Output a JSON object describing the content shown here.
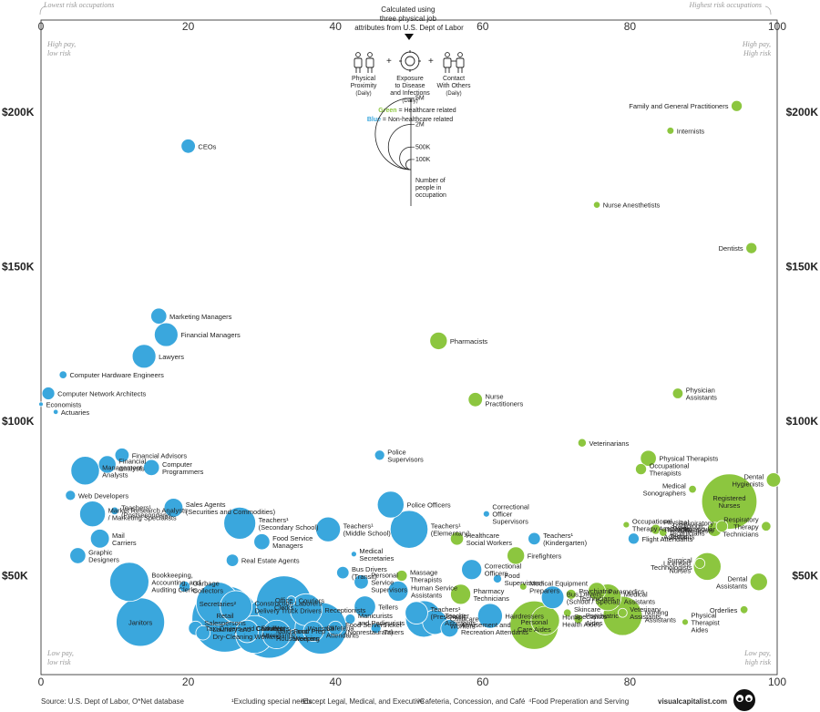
{
  "chart_data": {
    "type": "scatter",
    "subtitle": "Calculated using three physical job attributes from U.S. Dept of Labor",
    "x_top_left_note": "Lowest risk occupations",
    "x_top_right_note": "Highest risk occupations",
    "xlim": [
      0,
      100
    ],
    "xticks": [
      "0",
      "20",
      "40",
      "60",
      "80",
      "100"
    ],
    "ylim": [
      20000,
      215000
    ],
    "yticks": [
      {
        "value": 200000,
        "label": "$200K"
      },
      {
        "value": 150000,
        "label": "$150K"
      },
      {
        "value": 100000,
        "label": "$100K"
      },
      {
        "value": 50000,
        "label": "$50K"
      }
    ],
    "corners": {
      "top_left": [
        "High pay,",
        "low risk"
      ],
      "top_right": [
        "High pay,",
        "High risk"
      ],
      "bottom_left": [
        "Low pay,",
        "low risk"
      ],
      "bottom_right": [
        "Low pay,",
        "high risk"
      ]
    },
    "legend": {
      "attributes": [
        {
          "name": "Physical Proximity",
          "note": "(Daily)",
          "icon": "people-proximity-icon"
        },
        {
          "name": "Exposure to Disease and Infections",
          "note": "(Daily)",
          "icon": "virus-icon"
        },
        {
          "name": "Contact With Others",
          "note": "(Daily)",
          "icon": "contact-icon"
        }
      ],
      "plus": "+",
      "color_key": [
        {
          "word": "Green",
          "rest": " = Healthcare related",
          "color": "#8cc63f"
        },
        {
          "word": "Blue",
          "rest": " = Non-healthcare related",
          "color": "#3aa7dd"
        }
      ],
      "size_labels": [
        "5M",
        "2M",
        "500K",
        "100K"
      ],
      "size_values": [
        5000000,
        2000000,
        500000,
        100000
      ],
      "size_caption": [
        "Number of",
        "people in",
        "occupation"
      ]
    },
    "colors": {
      "healthcare": "#8cc63f",
      "non_healthcare": "#3aa7dd"
    },
    "points": [
      {
        "name": [
          "Family and General Practitioners"
        ],
        "x": 94.5,
        "y": 202000,
        "n": 120000,
        "hc": true
      },
      {
        "name": [
          "Internists"
        ],
        "x": 85.5,
        "y": 194000,
        "n": 50000,
        "hc": true
      },
      {
        "name": [
          "CEOs"
        ],
        "x": 20,
        "y": 189000,
        "n": 200000,
        "hc": false
      },
      {
        "name": [
          "Nurse Anesthetists"
        ],
        "x": 75.5,
        "y": 170000,
        "n": 45000,
        "hc": true
      },
      {
        "name": [
          "Dentists"
        ],
        "x": 96.5,
        "y": 156000,
        "n": 120000,
        "hc": true
      },
      {
        "name": [
          "Marketing Managers"
        ],
        "x": 16,
        "y": 134000,
        "n": 250000,
        "hc": false
      },
      {
        "name": [
          "Financial Managers"
        ],
        "x": 17,
        "y": 128000,
        "n": 550000,
        "hc": false
      },
      {
        "name": [
          "Pharmacists"
        ],
        "x": 54,
        "y": 126000,
        "n": 300000,
        "hc": true
      },
      {
        "name": [
          "Lawyers"
        ],
        "x": 14,
        "y": 121000,
        "n": 550000,
        "hc": false
      },
      {
        "name": [
          "Computer Hardware Engineers"
        ],
        "x": 3,
        "y": 115000,
        "n": 60000,
        "hc": false
      },
      {
        "name": [
          "Computer Network Architects"
        ],
        "x": 1,
        "y": 109000,
        "n": 160000,
        "hc": false
      },
      {
        "name": [
          "Physician",
          "Assistants"
        ],
        "x": 86.5,
        "y": 109000,
        "n": 110000,
        "hc": true
      },
      {
        "name": [
          "Nurse",
          "Practitioners"
        ],
        "x": 59,
        "y": 107000,
        "n": 200000,
        "hc": true
      },
      {
        "name": [
          "Economists"
        ],
        "x": 0,
        "y": 105500,
        "n": 20000,
        "hc": false
      },
      {
        "name": [
          "Actuaries"
        ],
        "x": 2,
        "y": 103000,
        "n": 25000,
        "hc": false
      },
      {
        "name": [
          "Veterinarians"
        ],
        "x": 73.5,
        "y": 93000,
        "n": 70000,
        "hc": true
      },
      {
        "name": [
          "Financial Advisors"
        ],
        "x": 11,
        "y": 89000,
        "n": 200000,
        "hc": false
      },
      {
        "name": [
          "Police",
          "Supervisors"
        ],
        "x": 46,
        "y": 89000,
        "n": 100000,
        "hc": false
      },
      {
        "name": [
          "Physical Therapists"
        ],
        "x": 82.5,
        "y": 88000,
        "n": 250000,
        "hc": true
      },
      {
        "name": [
          "Financial",
          "Analysts"
        ],
        "x": 9,
        "y": 86000,
        "n": 300000,
        "hc": false
      },
      {
        "name": [
          "Computer",
          "Programmers"
        ],
        "x": 15,
        "y": 85000,
        "n": 250000,
        "hc": false
      },
      {
        "name": [
          "Occupational",
          "Therapists"
        ],
        "x": 81.5,
        "y": 84500,
        "n": 120000,
        "hc": true
      },
      {
        "name": [
          "Management",
          "Analysts"
        ],
        "x": 6,
        "y": 84000,
        "n": 800000,
        "hc": false
      },
      {
        "name": [
          "Dental",
          "Hygienists"
        ],
        "x": 99.5,
        "y": 81000,
        "n": 200000,
        "hc": true
      },
      {
        "name": [
          "Registered",
          "Nurses"
        ],
        "x": 93.5,
        "y": 74000,
        "n": 3000000,
        "hc": true
      },
      {
        "name": [
          "Medical",
          "Sonographers"
        ],
        "x": 88.5,
        "y": 78000,
        "n": 60000,
        "hc": true
      },
      {
        "name": [
          "Web Developers"
        ],
        "x": 4,
        "y": 76000,
        "n": 100000,
        "hc": false
      },
      {
        "name": [
          "Police Officers"
        ],
        "x": 47.5,
        "y": 73000,
        "n": 700000,
        "hc": false
      },
      {
        "name": [
          "Sales Agents",
          "(Securities and Commodities)"
        ],
        "x": 18,
        "y": 72000,
        "n": 350000,
        "hc": false
      },
      {
        "name": [
          "Teachers¹",
          "(Postsecondary)"
        ],
        "x": 10,
        "y": 71000,
        "n": 60000,
        "hc": false
      },
      {
        "name": [
          "Market Research Analysts",
          "/ Marketing Specialists"
        ],
        "x": 7,
        "y": 70000,
        "n": 650000,
        "hc": false
      },
      {
        "name": [
          "Correctional",
          "Officer",
          "Supervisors"
        ],
        "x": 60.5,
        "y": 70000,
        "n": 40000,
        "hc": false
      },
      {
        "name": [
          "Teachers¹",
          "(Secondary School)"
        ],
        "x": 27,
        "y": 67000,
        "n": 1000000,
        "hc": false
      },
      {
        "name": [
          "Teachers¹",
          "(Middle School)"
        ],
        "x": 39,
        "y": 65000,
        "n": 600000,
        "hc": false
      },
      {
        "name": [
          "Teachers¹",
          "(Elementary)"
        ],
        "x": 50,
        "y": 65000,
        "n": 1400000,
        "hc": false
      },
      {
        "name": [
          "Occupational",
          "Therapy Assistants"
        ],
        "x": 79.5,
        "y": 66500,
        "n": 40000,
        "hc": true
      },
      {
        "name": [
          "Physical",
          "Therapist",
          "Assistants"
        ],
        "x": 83.5,
        "y": 65000,
        "n": 100000,
        "hc": true
      },
      {
        "name": [
          "Respiratory",
          "Therapists"
        ],
        "x": 92.5,
        "y": 66000,
        "n": 130000,
        "hc": true
      },
      {
        "name": [
          "Respiratory",
          "Therapy",
          "Technicians"
        ],
        "x": 98.5,
        "y": 66000,
        "n": 90000,
        "hc": true
      },
      {
        "name": [
          "Radiologic",
          "Technicians"
        ],
        "x": 91.5,
        "y": 65000,
        "n": 200000,
        "hc": true
      },
      {
        "name": [
          "Cardiovascular",
          "Techs"
        ],
        "x": 84.5,
        "y": 64000,
        "n": 60000,
        "hc": true
      },
      {
        "name": [
          "Mail",
          "Carriers"
        ],
        "x": 8,
        "y": 62000,
        "n": 350000,
        "hc": false
      },
      {
        "name": [
          "Healthcare",
          "Social Workers"
        ],
        "x": 56.5,
        "y": 62000,
        "n": 170000,
        "hc": true
      },
      {
        "name": [
          "Teachers¹",
          "(Kindergarten)"
        ],
        "x": 67,
        "y": 62000,
        "n": 150000,
        "hc": false
      },
      {
        "name": [
          "Flight Attendants"
        ],
        "x": 80.5,
        "y": 62000,
        "n": 120000,
        "hc": false
      },
      {
        "name": [
          "Food Service",
          "Managers"
        ],
        "x": 30,
        "y": 61000,
        "n": 250000,
        "hc": false
      },
      {
        "name": [
          "Graphic",
          "Designers"
        ],
        "x": 5,
        "y": 56500,
        "n": 250000,
        "hc": false
      },
      {
        "name": [
          "Medical",
          "Secretaries"
        ],
        "x": 42.5,
        "y": 57000,
        "n": 30000,
        "hc": false
      },
      {
        "name": [
          "Firefighters"
        ],
        "x": 64.5,
        "y": 56500,
        "n": 300000,
        "hc": true
      },
      {
        "name": [
          "Real Estate Agents"
        ],
        "x": 26,
        "y": 55000,
        "n": 150000,
        "hc": false
      },
      {
        "name": [
          "Surgical",
          "Technologists"
        ],
        "x": 89.5,
        "y": 54000,
        "n": 100000,
        "hc": true
      },
      {
        "name": [
          "Licensed",
          "Nurses"
        ],
        "x": 90.5,
        "y": 53000,
        "n": 750000,
        "hc": true
      },
      {
        "name": [
          "Correctional",
          "Officers"
        ],
        "x": 58.5,
        "y": 52000,
        "n": 400000,
        "hc": false
      },
      {
        "name": [
          "Bookkeeping,",
          "Accounting, and",
          "Auditing Clerks"
        ],
        "x": 12,
        "y": 48000,
        "n": 1500000,
        "hc": false
      },
      {
        "name": [
          "Bus Drivers",
          "(Transit)"
        ],
        "x": 41,
        "y": 51000,
        "n": 150000,
        "hc": false
      },
      {
        "name": [
          "Food",
          "Supervisors⁴"
        ],
        "x": 62,
        "y": 49000,
        "n": 70000,
        "hc": false
      },
      {
        "name": [
          "Dental",
          "Assistants"
        ],
        "x": 97.5,
        "y": 48000,
        "n": 300000,
        "hc": true
      },
      {
        "name": [
          "Massage",
          "Therapists"
        ],
        "x": 49,
        "y": 50000,
        "n": 120000,
        "hc": true
      },
      {
        "name": [
          "Personal",
          "Service",
          "Supervisors"
        ],
        "x": 43.5,
        "y": 48000,
        "n": 200000,
        "hc": false
      },
      {
        "name": [
          "Medical Equipment",
          "Preparers"
        ],
        "x": 65.5,
        "y": 46500,
        "n": 50000,
        "hc": true
      },
      {
        "name": [
          "Garbage",
          "Collectors"
        ],
        "x": 19.5,
        "y": 46500,
        "n": 120000,
        "hc": false
      },
      {
        "name": [
          "Human Service",
          "Assistants"
        ],
        "x": 48.5,
        "y": 45000,
        "n": 400000,
        "hc": false
      },
      {
        "name": [
          "Pharmacy",
          "Technicians"
        ],
        "x": 57,
        "y": 44000,
        "n": 400000,
        "hc": true
      },
      {
        "name": [
          "Paramedics"
        ],
        "x": 75.5,
        "y": 45000,
        "n": 300000,
        "hc": true
      },
      {
        "name": [
          "Psychiatric",
          "Technicians"
        ],
        "x": 72,
        "y": 44000,
        "n": 100000,
        "hc": true
      },
      {
        "name": [
          "Bus Drivers",
          "(School / Special)"
        ],
        "x": 69.5,
        "y": 43000,
        "n": 500000,
        "hc": false
      },
      {
        "name": [
          "Medical",
          "Assistants"
        ],
        "x": 77,
        "y": 43000,
        "n": 700000,
        "hc": true
      },
      {
        "name": [
          "Office",
          "Clerks"
        ],
        "x": 33,
        "y": 41000,
        "n": 3000000,
        "hc": false
      },
      {
        "name": [
          "Couriers"
        ],
        "x": 34,
        "y": 42000,
        "n": 80000,
        "hc": false
      },
      {
        "name": [
          "Tellers"
        ],
        "x": 44,
        "y": 40000,
        "n": 450000,
        "hc": false
      },
      {
        "name": [
          "Receptionists"
        ],
        "x": 36,
        "y": 39000,
        "n": 1000000,
        "hc": false
      },
      {
        "name": [
          "Teachers¹",
          "(Preschool)"
        ],
        "x": 51,
        "y": 38000,
        "n": 500000,
        "hc": false
      },
      {
        "name": [
          "Secretaries²"
        ],
        "x": 24,
        "y": 41000,
        "n": 1800000,
        "hc": false
      },
      {
        "name": [
          "Construction Laborers",
          "Delivery Truck Drivers"
        ],
        "x": 26.5,
        "y": 40000,
        "n": 1000000,
        "hc": false
      },
      {
        "name": [
          "Veterinary",
          "Assistants"
        ],
        "x": 79,
        "y": 38000,
        "n": 80000,
        "hc": true
      },
      {
        "name": [
          "Hairdressers"
        ],
        "x": 61,
        "y": 37000,
        "n": 600000,
        "hc": false
      },
      {
        "name": [
          "Orderlies"
        ],
        "x": 95.5,
        "y": 39000,
        "n": 60000,
        "hc": true
      },
      {
        "name": [
          "Nursing",
          "Assistants"
        ],
        "x": 79,
        "y": 37000,
        "n": 1500000,
        "hc": true
      },
      {
        "name": [
          "Manicurists",
          "and Pedicurists"
        ],
        "x": 42,
        "y": 36000,
        "n": 100000,
        "hc": false
      },
      {
        "name": [
          "Janitors"
        ],
        "x": 13.5,
        "y": 35000,
        "n": 2300000,
        "hc": false
      },
      {
        "name": [
          "Physical",
          "Therapist",
          "Aides"
        ],
        "x": 87.5,
        "y": 35000,
        "n": 40000,
        "hc": true
      },
      {
        "name": [
          "Counter",
          "Attendants³"
        ],
        "x": 28,
        "y": 32000,
        "n": 500000,
        "hc": false
      },
      {
        "name": [
          "Ticket",
          "Takers"
        ],
        "x": 45.5,
        "y": 33000,
        "n": 100000,
        "hc": false
      },
      {
        "name": [
          "Food Servers",
          "(Nonrestaurant)"
        ],
        "x": 40,
        "y": 33000,
        "n": 200000,
        "hc": false
      },
      {
        "name": [
          "Taxi Drivers and Chauffeurs"
        ],
        "x": 21,
        "y": 33000,
        "n": 200000,
        "hc": false
      },
      {
        "name": [
          "Cashiers"
        ],
        "x": 31,
        "y": 33000,
        "n": 3500000,
        "hc": false
      },
      {
        "name": [
          "Personal",
          "Care Aides"
        ],
        "x": 67,
        "y": 34000,
        "n": 2300000,
        "hc": true
      },
      {
        "name": [
          "Home",
          "Health Aides"
        ],
        "x": 68.5,
        "y": 35500,
        "n": 800000,
        "hc": true
      },
      {
        "name": [
          "Childcare",
          "Workers"
        ],
        "x": 53.5,
        "y": 35000,
        "n": 600000,
        "hc": false
      },
      {
        "name": [
          "Amusement and",
          "Recreation Attendants"
        ],
        "x": 55.5,
        "y": 33000,
        "n": 300000,
        "hc": false
      },
      {
        "name": [
          "Teacher",
          "Assistants"
        ],
        "x": 52,
        "y": 36000,
        "n": 1300000,
        "hc": false
      },
      {
        "name": [
          "Skincare",
          "Specialists"
        ],
        "x": 71.5,
        "y": 38000,
        "n": 60000,
        "hc": true
      },
      {
        "name": [
          "Psychiatric",
          "Aides"
        ],
        "x": 73,
        "y": 36000,
        "n": 80000,
        "hc": true
      },
      {
        "name": [
          "Maids and",
          "Housekeeping"
        ],
        "x": 29,
        "y": 31000,
        "n": 1400000,
        "hc": false
      },
      {
        "name": [
          "Retail",
          "Salespersons"
        ],
        "x": 25,
        "y": 36000,
        "n": 4300000,
        "hc": false
      },
      {
        "name": [
          "Food Prep",
          "Workers"
        ],
        "x": 32,
        "y": 31000,
        "n": 800000,
        "hc": false
      },
      {
        "name": [
          "Cafeteria",
          "Attendants"
        ],
        "x": 37,
        "y": 32000,
        "n": 400000,
        "hc": false
      },
      {
        "name": [
          "Waitstaff"
        ],
        "x": 38,
        "y": 33000,
        "n": 2600000,
        "hc": false
      },
      {
        "name": [
          "Laundry and",
          "Dry-Cleaning Workers"
        ],
        "x": 22,
        "y": 31500,
        "n": 200000,
        "hc": false
      }
    ]
  },
  "footer": {
    "source": "Source: U.S. Dept of Labor, O*Net database",
    "notes": [
      "¹Excluding special needs",
      "²Except Legal, Medical, and Executive",
      "³Cafeteria, Concession, and Café",
      "⁴Food Preperation and Serving"
    ],
    "brand": "visualcapitalist.com",
    "brand_icon": "visual-capitalist-logo-icon"
  }
}
